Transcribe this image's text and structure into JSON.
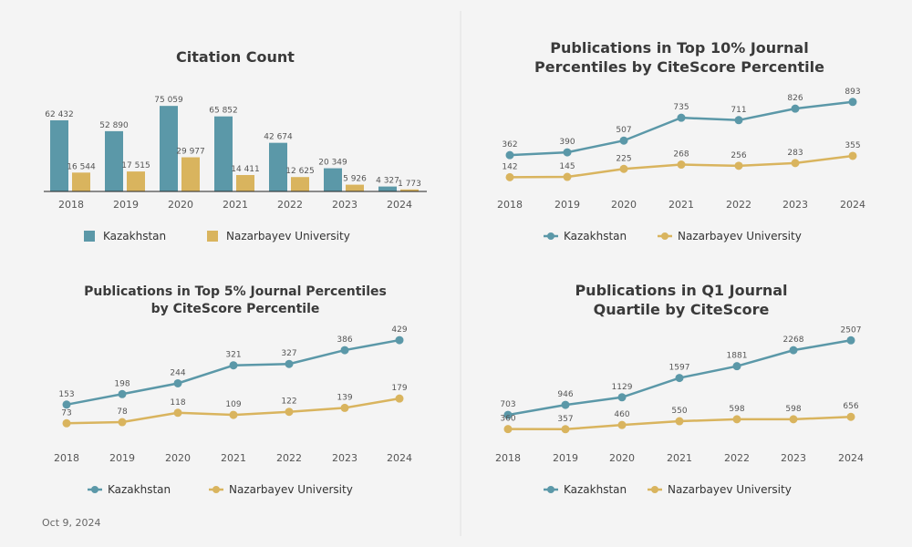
{
  "footer": {
    "date": "Oct 9, 2024"
  },
  "colors": {
    "kazakhstan": "#5b98a8",
    "nazarbayev": "#d9b45e"
  },
  "chart_data": [
    {
      "type": "bar",
      "title": [
        "Citation Count"
      ],
      "categories": [
        "2018",
        "2019",
        "2020",
        "2021",
        "2022",
        "2023",
        "2024"
      ],
      "series": [
        {
          "name": "Kazakhstan",
          "values": [
            62432,
            52890,
            75059,
            65852,
            42674,
            20349,
            4327
          ],
          "labels": [
            "62 432",
            "52 890",
            "75 059",
            "65 852",
            "42 674",
            "20 349",
            "4 327"
          ]
        },
        {
          "name": "Nazarbayev University",
          "values": [
            16544,
            17515,
            29977,
            14411,
            12625,
            5926,
            1773
          ],
          "labels": [
            "16 544",
            "17 515",
            "29 977",
            "14 411",
            "12 625",
            "5 926",
            "1 773"
          ]
        }
      ],
      "ylim": [
        0,
        80000
      ],
      "legend": "bottom"
    },
    {
      "type": "line",
      "title": [
        "Publications in Top 10% Journal",
        "Percentiles by CiteScore Percentile"
      ],
      "categories": [
        "2018",
        "2019",
        "2020",
        "2021",
        "2022",
        "2023",
        "2024"
      ],
      "series": [
        {
          "name": "Kazakhstan",
          "values": [
            362,
            390,
            507,
            735,
            711,
            826,
            893
          ]
        },
        {
          "name": "Nazarbayev University",
          "values": [
            142,
            145,
            225,
            268,
            256,
            283,
            355
          ]
        }
      ],
      "ylim": [
        0,
        1000
      ],
      "legend": "bottom"
    },
    {
      "type": "line",
      "title": [
        "Publications in Top 5% Journal Percentiles",
        "by CiteScore Percentile"
      ],
      "categories": [
        "2018",
        "2019",
        "2020",
        "2021",
        "2022",
        "2023",
        "2024"
      ],
      "series": [
        {
          "name": "Kazakhstan",
          "values": [
            153,
            198,
            244,
            321,
            327,
            386,
            429
          ]
        },
        {
          "name": "Nazarbayev University",
          "values": [
            73,
            78,
            118,
            109,
            122,
            139,
            179
          ]
        }
      ],
      "ylim": [
        0,
        480
      ],
      "legend": "bottom"
    },
    {
      "type": "line",
      "title": [
        "Publications in Q1 Journal",
        "Quartile by CiteScore"
      ],
      "categories": [
        "2018",
        "2019",
        "2020",
        "2021",
        "2022",
        "2023",
        "2024"
      ],
      "series": [
        {
          "name": "Kazakhstan",
          "values": [
            703,
            946,
            1129,
            1597,
            1881,
            2268,
            2507
          ]
        },
        {
          "name": "Nazarbayev University",
          "values": [
            360,
            357,
            460,
            550,
            598,
            598,
            656
          ]
        }
      ],
      "ylim": [
        0,
        2800
      ],
      "legend": "bottom"
    }
  ]
}
